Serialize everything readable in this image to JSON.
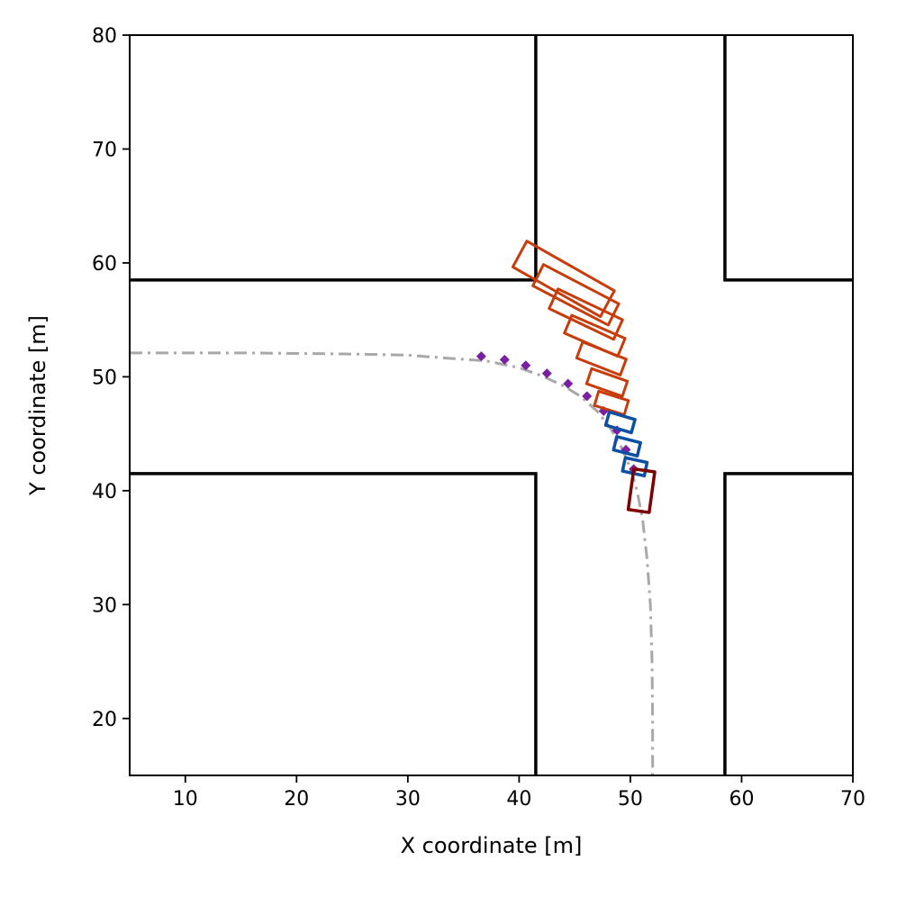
{
  "chart_data": {
    "type": "scatter",
    "xlabel": "X coordinate [m]",
    "ylabel": "Y coordinate [m]",
    "xlim": [
      5,
      70
    ],
    "ylim": [
      15,
      80
    ],
    "xticks": [
      10,
      20,
      30,
      40,
      50,
      60,
      70
    ],
    "yticks": [
      20,
      30,
      40,
      50,
      60,
      70,
      80
    ],
    "grid": false,
    "road_edges": [
      [
        [
          5,
          58.5
        ],
        [
          41.5,
          58.5
        ],
        [
          41.5,
          80
        ]
      ],
      [
        [
          5,
          41.5
        ],
        [
          41.5,
          41.5
        ],
        [
          41.5,
          15
        ]
      ],
      [
        [
          58.5,
          80
        ],
        [
          58.5,
          58.5
        ],
        [
          70,
          58.5
        ]
      ],
      [
        [
          58.5,
          15
        ],
        [
          58.5,
          41.5
        ],
        [
          70,
          41.5
        ]
      ]
    ],
    "reference_path": {
      "color": "#a8a8a8",
      "style": "dash-dot",
      "points": [
        [
          5,
          52.1
        ],
        [
          15,
          52.1
        ],
        [
          25,
          52.0
        ],
        [
          30,
          51.9
        ],
        [
          34,
          51.6
        ],
        [
          37,
          51.4
        ],
        [
          40,
          50.8
        ],
        [
          42,
          50.1
        ],
        [
          44,
          49.2
        ],
        [
          45.5,
          48.3
        ],
        [
          47,
          47.0
        ],
        [
          48.2,
          45.5
        ],
        [
          49.2,
          43.8
        ],
        [
          50,
          42.0
        ],
        [
          50.6,
          40.0
        ],
        [
          51.1,
          37.5
        ],
        [
          51.5,
          34.0
        ],
        [
          51.8,
          30.0
        ],
        [
          51.95,
          25.0
        ],
        [
          52.0,
          20.0
        ],
        [
          52.0,
          15.0
        ]
      ]
    },
    "purple_markers": {
      "color": "#7a1fa2",
      "points": [
        [
          36.6,
          51.8
        ],
        [
          38.7,
          51.5
        ],
        [
          40.6,
          51.0
        ],
        [
          42.5,
          50.3
        ],
        [
          44.4,
          49.4
        ],
        [
          46.1,
          48.3
        ],
        [
          47.6,
          47.0
        ],
        [
          48.8,
          45.3
        ],
        [
          49.6,
          43.6
        ],
        [
          50.3,
          41.9
        ]
      ]
    },
    "ego_vehicle": {
      "color": "#7b0000",
      "cx": 51.0,
      "cy": 40.0,
      "w": 1.9,
      "h": 3.6,
      "angle": 8
    },
    "blue_boxes": {
      "color": "#0d4fa3",
      "boxes": [
        {
          "cx": 50.4,
          "cy": 42.1,
          "w": 2.0,
          "h": 1.2,
          "angle": 12
        },
        {
          "cx": 49.7,
          "cy": 43.9,
          "w": 2.2,
          "h": 1.2,
          "angle": 14
        },
        {
          "cx": 49.1,
          "cy": 46.0,
          "w": 2.4,
          "h": 1.2,
          "angle": 16
        }
      ]
    },
    "orange_boxes": {
      "color": "#c83c0c",
      "boxes": [
        {
          "cx": 48.3,
          "cy": 47.7,
          "w": 2.8,
          "h": 1.3,
          "angle": 17
        },
        {
          "cx": 47.9,
          "cy": 49.5,
          "w": 3.4,
          "h": 1.4,
          "angle": 19
        },
        {
          "cx": 47.4,
          "cy": 51.6,
          "w": 4.2,
          "h": 1.5,
          "angle": 21
        },
        {
          "cx": 46.8,
          "cy": 53.6,
          "w": 5.2,
          "h": 1.7,
          "angle": 23
        },
        {
          "cx": 46.0,
          "cy": 55.5,
          "w": 6.4,
          "h": 1.9,
          "angle": 25
        },
        {
          "cx": 45.1,
          "cy": 57.2,
          "w": 7.6,
          "h": 2.1,
          "angle": 27
        },
        {
          "cx": 44.0,
          "cy": 58.6,
          "w": 9.0,
          "h": 2.6,
          "angle": 29
        }
      ]
    }
  }
}
